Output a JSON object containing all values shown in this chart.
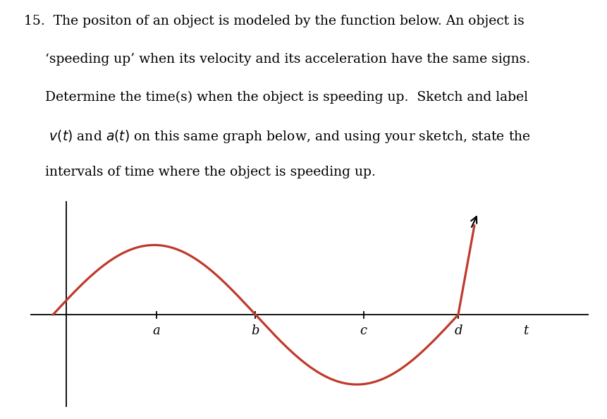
{
  "text_line1": "15.  The positon of an object is modeled by the function below. An object is",
  "text_line2": "     ‘speeding up’ when its velocity and its acceleration have the same signs.",
  "text_line3": "     Determine the time(s) when the object is speeding up.  Sketch and label",
  "text_line4": "      v(t) and a(t) on this same graph below, and using your sketch, state the",
  "text_line5": "     intervals of time where the object is speeding up.",
  "curve_color": "#c0392b",
  "axis_color": "#000000",
  "background_color": "#ffffff",
  "tick_labels": [
    "a",
    "b",
    "c",
    "d",
    "t"
  ],
  "tick_positions": [
    1.0,
    2.1,
    3.3,
    4.35,
    5.1
  ],
  "zero_cross_b": 2.1,
  "zero_cross_d": 4.35,
  "curve_amplitude": 1.6,
  "font_size_text": 13.5,
  "font_size_tick": 13
}
